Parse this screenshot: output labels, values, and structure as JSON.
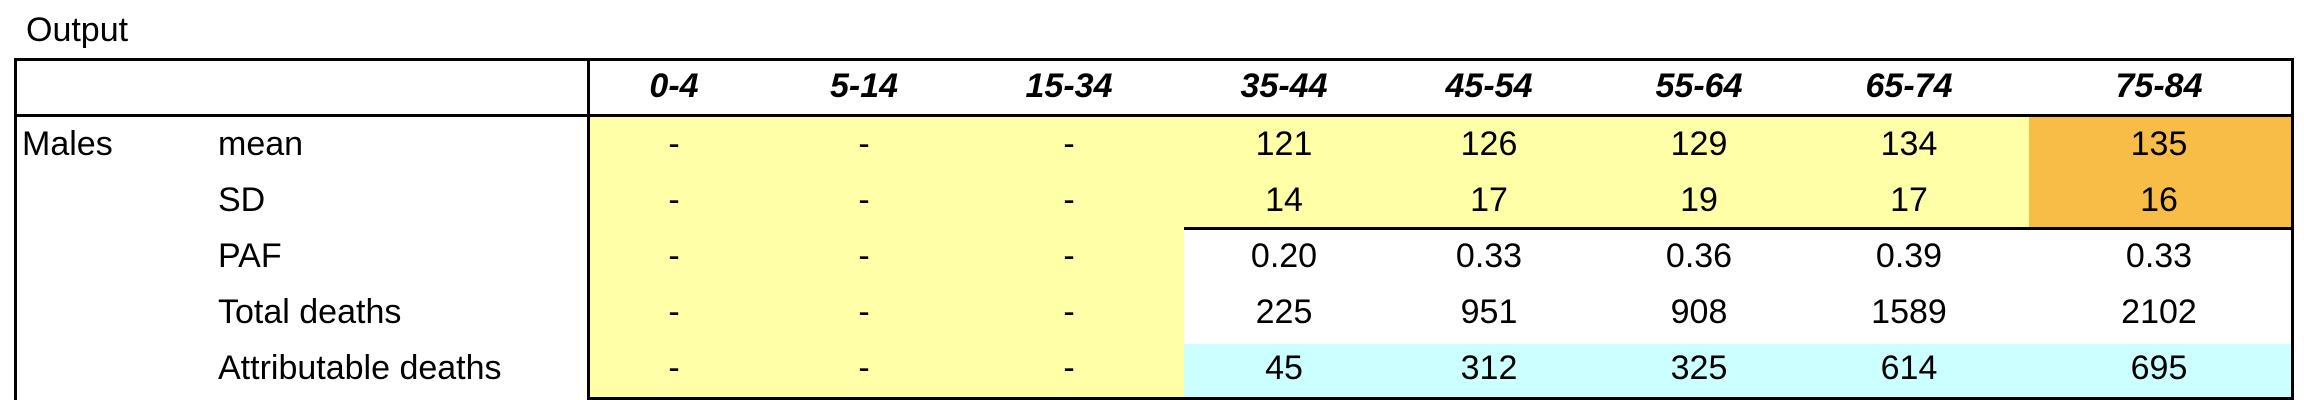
{
  "sheet_title": "Output",
  "headers": [
    "0-4",
    "5-14",
    "15-34",
    "35-44",
    "45-54",
    "55-64",
    "65-74",
    "75-84"
  ],
  "group_label": "Males",
  "rows": [
    {
      "label": "mean",
      "values": [
        "-",
        "-",
        "-",
        "121",
        "126",
        "129",
        "134",
        "135"
      ]
    },
    {
      "label": "SD",
      "values": [
        "-",
        "-",
        "-",
        "14",
        "17",
        "19",
        "17",
        "16"
      ]
    },
    {
      "label": "PAF",
      "values": [
        "-",
        "-",
        "-",
        "0.20",
        "0.33",
        "0.36",
        "0.39",
        "0.33"
      ]
    },
    {
      "label": "Total deaths",
      "values": [
        "-",
        "-",
        "-",
        "225",
        "951",
        "908",
        "1589",
        "2102"
      ]
    },
    {
      "label": "Attributable deaths",
      "values": [
        "-",
        "-",
        "-",
        "45",
        "312",
        "325",
        "614",
        "695"
      ]
    }
  ],
  "colors": {
    "yellow": "#ffffa8",
    "orange": "#f7bd47",
    "cyan": "#ccffff"
  }
}
